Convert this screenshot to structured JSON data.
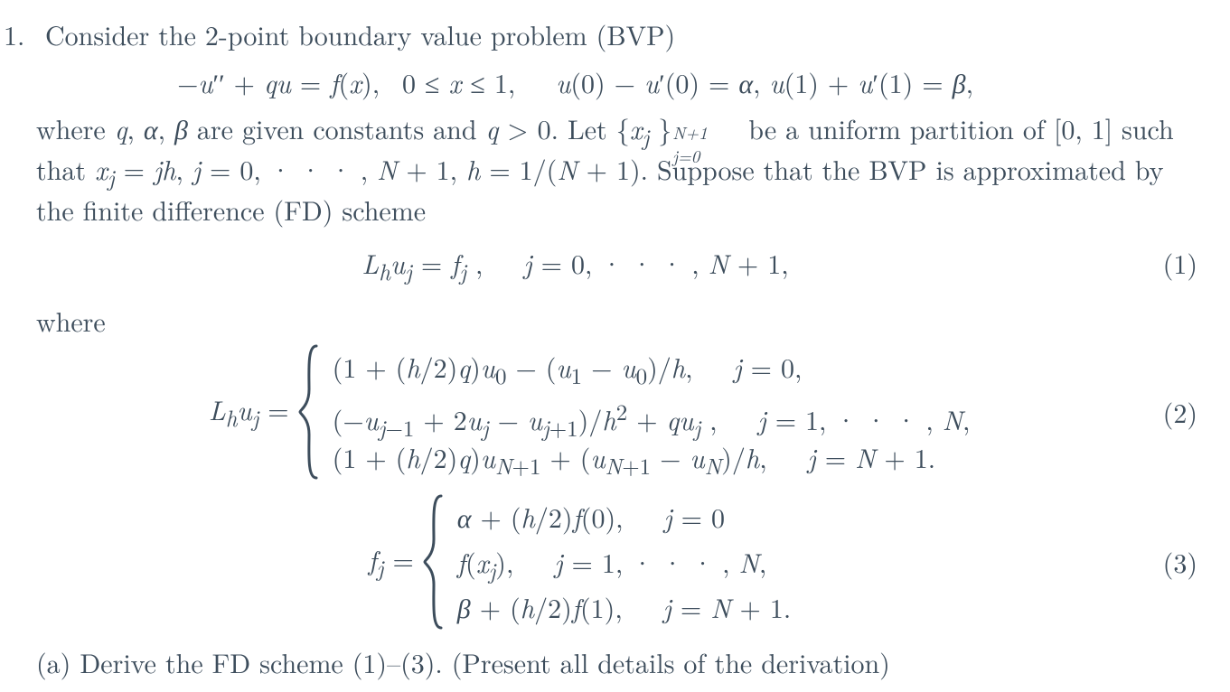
{
  "colors": {
    "text": "#3d4d5c",
    "background": "#ffffff"
  },
  "typography": {
    "fontsize_pt": 30,
    "family": "serif"
  },
  "item_number": "1.",
  "prompt_lead": "Consider the 2-point boundary value problem (BVP)",
  "bvp_eqn": "−<i>u</i>′′ + <i>qu</i> = <i>f</i>(<i>x</i>),&nbsp; 0 ≤ <i>x</i> ≤ 1,&nbsp;&nbsp;&nbsp;<i>u</i>(0) − <i>u</i>′(0) = <i>α</i>, <i>u</i>(1) + <i>u</i>′(1) = <i>β</i>,",
  "para2_l1": "where <i>q</i>, <i>α</i>, <i>β</i> are given constants and <i>q</i> &gt; 0. Let {<i>x<sub>j</sub></i> }<span class=\"subup\"><span class=\"top\">N+1</span><span class=\"bot\">j=0</span></span>&nbsp;&nbsp;&nbsp;&nbsp;&nbsp; be a uniform partition of [0, 1] such",
  "para2_l2": "that <i>x<sub>j</sub></i> = <i>jh</i>, <i>j</i> = 0, · · · , <i>N</i> + 1, <i>h</i> = 1/(<i>N</i> + 1). Suppose that the BVP is approximated by",
  "para2_l3": "the finite difference (FD) scheme",
  "scheme_eqn": "<i>L<sub>h</sub>u<sub>j</sub></i> = <i>f<sub>j</sub></i> ,&nbsp;&nbsp;&nbsp;<i>j</i> = 0, · · · , <i>N</i> + 1,",
  "eqtag1": "(1)",
  "where_word": "where",
  "Lh_label": "<i>L<sub>h</sub>u<sub>j</sub></i> =",
  "Lh_cases": [
    "(1 + (<i>h</i>/2)<i>q</i>)<i>u</i><sub>0</sub> − (<i>u</i><sub>1</sub> − <i>u</i><sub>0</sub>)/<i>h</i>,&nbsp;&nbsp;&nbsp;<i>j</i> = 0,",
    "(−<i>u</i><sub><i>j</i>−1</sub> + 2<i>u<sub>j</sub></i> − <i>u</i><sub><i>j</i>+1</sub>)/<i>h</i><sup>2</sup> + <i>qu<sub>j</sub></i> ,&nbsp;&nbsp;&nbsp;<i>j</i> = 1, · · · , <i>N</i>,",
    "(1 + (<i>h</i>/2)<i>q</i>)<i>u</i><sub><i>N</i>+1</sub> + (<i>u</i><sub><i>N</i>+1</sub> − <i>u<sub>N</sub></i>)/<i>h</i>,&nbsp;&nbsp;&nbsp;<i>j</i> = <i>N</i> + 1."
  ],
  "eqtag2": "(2)",
  "fj_label": "<i>f<sub>j</sub></i> =",
  "fj_cases": [
    "<i>α</i> + (<i>h</i>/2)<i>f</i>(0),&nbsp;&nbsp;&nbsp;<i>j</i> = 0",
    "<i>f</i>(<i>x<sub>j</sub></i>),&nbsp;&nbsp;&nbsp;<i>j</i> = 1, · · · , <i>N</i>,",
    "<i>β</i> + (<i>h</i>/2)<i>f</i>(1),&nbsp;&nbsp;&nbsp;<i>j</i> = <i>N</i> + 1."
  ],
  "eqtag3": "(3)",
  "part_a": "(a) Derive the FD scheme (1)–(3). (Present all details of the derivation)"
}
